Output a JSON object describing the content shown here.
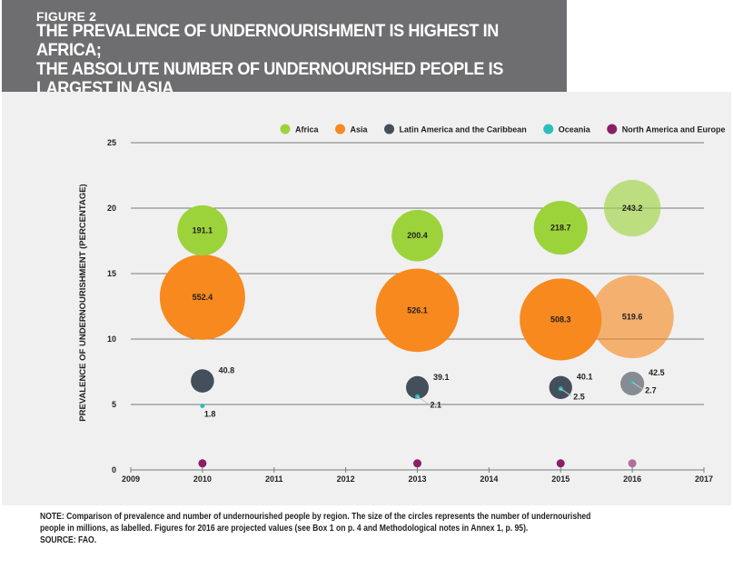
{
  "header": {
    "figure_label": "FIGURE 2",
    "title_line1": "THE PREVALENCE OF UNDERNOURISHMENT IS HIGHEST IN AFRICA;",
    "title_line2": "THE ABSOLUTE NUMBER OF UNDERNOURISHED PEOPLE IS LARGEST IN ASIA"
  },
  "colors": {
    "Africa": "#9cd33b",
    "Asia": "#f7891e",
    "Latin America and the Caribbean": "#434f5b",
    "Oceania": "#2cbfb9",
    "North America and Europe": "#8b1f67"
  },
  "chart_data": {
    "type": "bubble",
    "ylabel": "PREVALENCE OF UNDERNOURISHMENT (PERCENTAGE)",
    "xlabel": "",
    "xlim": [
      2009,
      2017
    ],
    "ylim": [
      0,
      25
    ],
    "x_ticks": [
      2009,
      2010,
      2011,
      2012,
      2013,
      2014,
      2015,
      2016,
      2017
    ],
    "y_ticks": [
      0,
      5,
      10,
      15,
      20,
      25
    ],
    "grid": "horizontal",
    "legend_position": "top-right",
    "projected_year": 2016,
    "series": [
      {
        "name": "Africa",
        "points": [
          {
            "x": 2010,
            "y": 18.3,
            "size": 191.1,
            "label": "191.1"
          },
          {
            "x": 2013,
            "y": 17.9,
            "size": 200.4,
            "label": "200.4"
          },
          {
            "x": 2015,
            "y": 18.5,
            "size": 218.7,
            "label": "218.7"
          },
          {
            "x": 2016,
            "y": 20.0,
            "size": 243.2,
            "label": "243.2"
          }
        ]
      },
      {
        "name": "Asia",
        "points": [
          {
            "x": 2010,
            "y": 13.2,
            "size": 552.4,
            "label": "552.4"
          },
          {
            "x": 2013,
            "y": 12.2,
            "size": 526.1,
            "label": "526.1"
          },
          {
            "x": 2015,
            "y": 11.5,
            "size": 508.3,
            "label": "508.3"
          },
          {
            "x": 2016,
            "y": 11.7,
            "size": 519.6,
            "label": "519.6"
          }
        ]
      },
      {
        "name": "Latin America and the Caribbean",
        "points": [
          {
            "x": 2010,
            "y": 6.8,
            "size": 40.8,
            "label": "40.8"
          },
          {
            "x": 2013,
            "y": 6.3,
            "size": 39.1,
            "label": "39.1"
          },
          {
            "x": 2015,
            "y": 6.3,
            "size": 40.1,
            "label": "40.1"
          },
          {
            "x": 2016,
            "y": 6.6,
            "size": 42.5,
            "label": "42.5"
          }
        ]
      },
      {
        "name": "Oceania",
        "points": [
          {
            "x": 2010,
            "y": 4.9,
            "size": 1.8,
            "label": "1.8"
          },
          {
            "x": 2013,
            "y": 5.6,
            "size": 2.1,
            "label": "2.1"
          },
          {
            "x": 2015,
            "y": 6.2,
            "size": 2.5,
            "label": "2.5"
          },
          {
            "x": 2016,
            "y": 6.7,
            "size": 2.7,
            "label": "2.7"
          }
        ]
      },
      {
        "name": "North America and Europe",
        "points": [
          {
            "x": 2010,
            "y": 0.5,
            "size": 14.0,
            "label": ""
          },
          {
            "x": 2013,
            "y": 0.5,
            "size": 14.0,
            "label": ""
          },
          {
            "x": 2015,
            "y": 0.5,
            "size": 14.0,
            "label": ""
          },
          {
            "x": 2016,
            "y": 0.5,
            "size": 14.0,
            "label": ""
          }
        ]
      }
    ]
  },
  "note": {
    "line1": "NOTE: Comparison of prevalence and number of undernourished people by region. The size of the circles represents the number of undernourished",
    "line2": "people in millions, as labelled. Figures for 2016 are projected values (see Box 1 on p. 4 and Methodological notes in Annex 1, p. 95).",
    "source": "SOURCE: FAO."
  }
}
